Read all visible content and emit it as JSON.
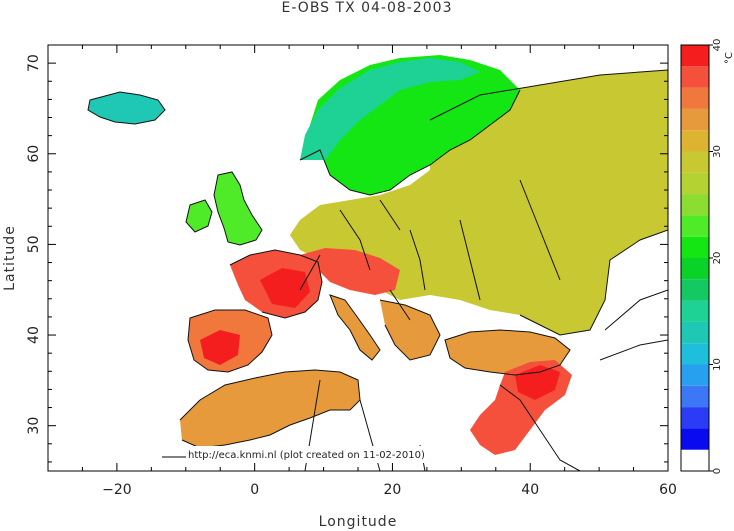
{
  "title": "E-OBS TX 04-08-2003",
  "credit": "http://eca.knmi.nl (plot created on 11-02-2010)",
  "x_axis": {
    "label": "Longitude",
    "ticks": [
      {
        "value": -20,
        "text": "−20"
      },
      {
        "value": 0,
        "text": "0"
      },
      {
        "value": 20,
        "text": "20"
      },
      {
        "value": 40,
        "text": "40"
      },
      {
        "value": 60,
        "text": "60"
      }
    ]
  },
  "y_axis": {
    "label": "Latitude",
    "ticks": [
      {
        "value": 30,
        "text": "30"
      },
      {
        "value": 40,
        "text": "40"
      },
      {
        "value": 50,
        "text": "50"
      },
      {
        "value": 60,
        "text": "60"
      },
      {
        "value": 70,
        "text": "70"
      }
    ]
  },
  "colorbar": {
    "unit": "°C",
    "ticks": [
      {
        "value": 0,
        "text": "0"
      },
      {
        "value": 10,
        "text": "10"
      },
      {
        "value": 20,
        "text": "20"
      },
      {
        "value": 30,
        "text": "30"
      },
      {
        "value": 40,
        "text": "40"
      }
    ],
    "bands": [
      {
        "from": 0,
        "to": 2,
        "color": "#ffffff"
      },
      {
        "from": 2,
        "to": 4,
        "color": "#0a0af0"
      },
      {
        "from": 4,
        "to": 6,
        "color": "#2a3cf5"
      },
      {
        "from": 6,
        "to": 8,
        "color": "#3c78f5"
      },
      {
        "from": 8,
        "to": 10,
        "color": "#28a0f0"
      },
      {
        "from": 10,
        "to": 12,
        "color": "#1ebedc"
      },
      {
        "from": 12,
        "to": 14,
        "color": "#1ec8b4"
      },
      {
        "from": 14,
        "to": 16,
        "color": "#1ed296"
      },
      {
        "from": 16,
        "to": 18,
        "color": "#14c864"
      },
      {
        "from": 18,
        "to": 20,
        "color": "#0ad228"
      },
      {
        "from": 20,
        "to": 22,
        "color": "#14e614"
      },
      {
        "from": 22,
        "to": 24,
        "color": "#50eb28"
      },
      {
        "from": 24,
        "to": 26,
        "color": "#8cdc32"
      },
      {
        "from": 26,
        "to": 28,
        "color": "#b4d232"
      },
      {
        "from": 28,
        "to": 30,
        "color": "#c8c832"
      },
      {
        "from": 30,
        "to": 32,
        "color": "#dcb432"
      },
      {
        "from": 32,
        "to": 34,
        "color": "#e69a3c"
      },
      {
        "from": 34,
        "to": 36,
        "color": "#f0783c"
      },
      {
        "from": 36,
        "to": 38,
        "color": "#f5503c"
      },
      {
        "from": 38,
        "to": 40,
        "color": "#f51e1e"
      }
    ]
  },
  "map": {
    "extent": {
      "lon": [
        -30,
        60
      ],
      "lat": [
        25,
        72
      ]
    },
    "regions": [
      {
        "name": "Iceland",
        "color": "#1ec8b4"
      },
      {
        "name": "Scandinavian mountains",
        "color": "#1ed296"
      },
      {
        "name": "Fennoscandia",
        "color": "#14e614"
      },
      {
        "name": "British Isles",
        "color": "#50eb28"
      },
      {
        "name": "Eastern Europe",
        "color": "#c8c832"
      },
      {
        "name": "France",
        "color": "#f5503c"
      },
      {
        "name": "Iberia",
        "color": "#f0783c"
      },
      {
        "name": "North Africa",
        "color": "#e69a3c"
      },
      {
        "name": "Anatolia",
        "color": "#e69a3c"
      },
      {
        "name": "Middle East",
        "color": "#f5503c"
      }
    ]
  }
}
